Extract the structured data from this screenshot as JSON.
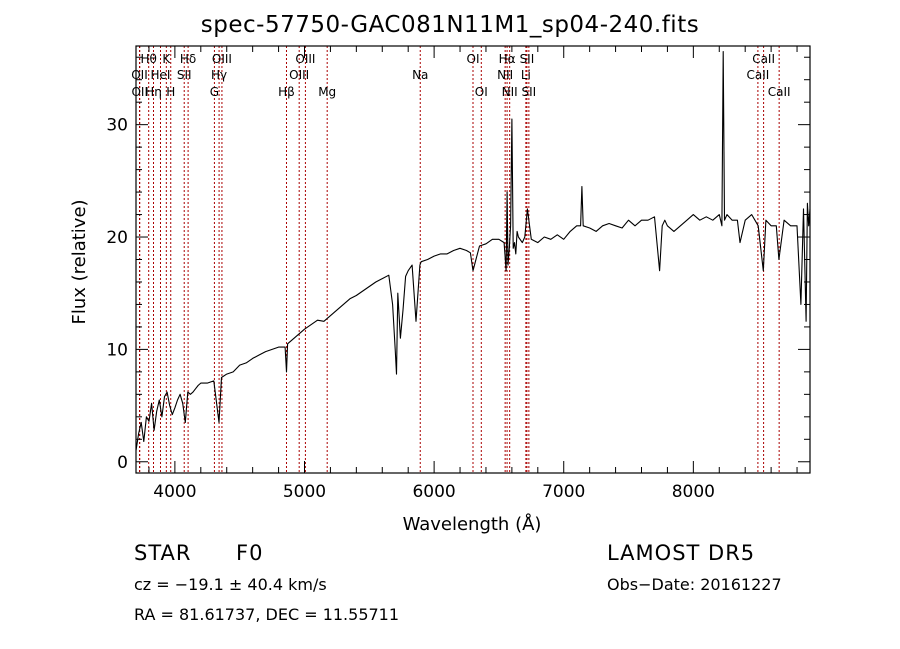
{
  "chart_data": {
    "type": "line",
    "title": "spec-57750-GAC081N11M1_sp04-240.fits",
    "xlabel": "Wavelength (Å)",
    "ylabel": "Flux (relative)",
    "xlim": [
      3700,
      8900
    ],
    "ylim": [
      -1,
      37
    ],
    "xticks": [
      4000,
      5000,
      6000,
      7000,
      8000
    ],
    "yticks": [
      0,
      10,
      20,
      30
    ],
    "grid": false,
    "line_color": "#000000",
    "marker_color": "#aa0000",
    "series": [
      {
        "x": [
          3700,
          3720,
          3740,
          3760,
          3780,
          3800,
          3820,
          3840,
          3860,
          3880,
          3900,
          3920,
          3940,
          3960,
          3980,
          4000,
          4020,
          4040,
          4060,
          4080,
          4100,
          4120,
          4140,
          4160,
          4180,
          4200,
          4250,
          4300,
          4340,
          4360,
          4400,
          4450,
          4500,
          4550,
          4600,
          4650,
          4700,
          4750,
          4800,
          4850,
          4861,
          4870,
          4900,
          4950,
          5000,
          5050,
          5100,
          5150,
          5200,
          5250,
          5300,
          5350,
          5400,
          5450,
          5500,
          5550,
          5600,
          5650,
          5680,
          5700,
          5710,
          5720,
          5740,
          5760,
          5780,
          5800,
          5830,
          5860,
          5890,
          5900,
          5950,
          6000,
          6050,
          6100,
          6150,
          6200,
          6250,
          6280,
          6300,
          6350,
          6400,
          6450,
          6500,
          6540,
          6555,
          6563,
          6570,
          6580,
          6590,
          6600,
          6610,
          6620,
          6630,
          6640,
          6650,
          6680,
          6700,
          6720,
          6750,
          6800,
          6850,
          6900,
          6950,
          7000,
          7050,
          7100,
          7130,
          7140,
          7150,
          7200,
          7250,
          7300,
          7350,
          7400,
          7450,
          7500,
          7550,
          7600,
          7650,
          7700,
          7740,
          7760,
          7780,
          7800,
          7850,
          7900,
          7950,
          8000,
          8050,
          8100,
          8150,
          8200,
          8220,
          8230,
          8240,
          8260,
          8300,
          8340,
          8360,
          8400,
          8450,
          8500,
          8540,
          8560,
          8600,
          8640,
          8660,
          8700,
          8750,
          8800,
          8830,
          8850,
          8870,
          8880,
          8890,
          8900
        ],
        "y": [
          1.0,
          2.5,
          3.5,
          1.8,
          4.0,
          3.6,
          5.2,
          2.8,
          4.5,
          5.5,
          4.0,
          5.8,
          6.2,
          5.0,
          4.2,
          4.8,
          5.5,
          6.0,
          5.2,
          3.5,
          6.2,
          6.0,
          6.2,
          6.5,
          6.8,
          7.0,
          7.0,
          7.2,
          3.5,
          7.5,
          7.8,
          8.0,
          8.6,
          8.8,
          9.2,
          9.5,
          9.8,
          10.0,
          10.2,
          10.2,
          8.0,
          10.5,
          10.8,
          11.3,
          11.8,
          12.2,
          12.6,
          12.5,
          13.0,
          13.5,
          14.0,
          14.5,
          14.8,
          15.2,
          15.6,
          16.0,
          16.3,
          16.6,
          14.0,
          10.0,
          7.8,
          15.0,
          11.0,
          13.5,
          16.5,
          17.0,
          17.5,
          12.5,
          17.5,
          17.8,
          18.0,
          18.3,
          18.5,
          18.5,
          18.8,
          19.0,
          18.8,
          18.6,
          17.0,
          19.2,
          19.4,
          19.8,
          19.8,
          19.5,
          17.0,
          24.0,
          17.5,
          19.0,
          21.0,
          30.5,
          19.0,
          19.5,
          18.5,
          20.5,
          20.0,
          19.5,
          20.0,
          22.5,
          19.8,
          19.5,
          20.0,
          19.8,
          20.2,
          19.8,
          20.5,
          21.0,
          21.0,
          24.5,
          21.0,
          20.8,
          20.5,
          21.0,
          21.2,
          21.0,
          20.8,
          21.5,
          21.0,
          21.5,
          21.5,
          21.8,
          17.0,
          21.0,
          21.5,
          21.0,
          20.5,
          21.0,
          21.5,
          22.0,
          21.5,
          21.8,
          21.5,
          22.0,
          21.0,
          36.5,
          21.5,
          22.0,
          21.5,
          21.5,
          19.5,
          21.5,
          22.0,
          21.0,
          17.0,
          21.5,
          21.0,
          21.0,
          18.0,
          21.5,
          21.0,
          21.0,
          14.0,
          22.5,
          12.5,
          23.0,
          21.0,
          22.5
        ]
      }
    ],
    "line_markers": [
      {
        "label": "Hθ",
        "x": 3798,
        "row": 1
      },
      {
        "label": "OII",
        "x": 3727,
        "row": 2
      },
      {
        "label": "OII",
        "x": 3729,
        "row": 3
      },
      {
        "label": "HeI",
        "x": 3889,
        "row": 2
      },
      {
        "label": "K",
        "x": 3934,
        "row": 1
      },
      {
        "label": "Hη",
        "x": 3835,
        "row": 3
      },
      {
        "label": "H",
        "x": 3968,
        "row": 3
      },
      {
        "label": "Hδ",
        "x": 4102,
        "row": 1
      },
      {
        "label": "SII",
        "x": 4072,
        "row": 2
      },
      {
        "label": "OIII",
        "x": 4363,
        "row": 1
      },
      {
        "label": "Hγ",
        "x": 4341,
        "row": 2
      },
      {
        "label": "G",
        "x": 4305,
        "row": 3
      },
      {
        "label": "OIII",
        "x": 5007,
        "row": 1
      },
      {
        "label": "OIII",
        "x": 4959,
        "row": 2
      },
      {
        "label": "Hβ",
        "x": 4861,
        "row": 3
      },
      {
        "label": "Mg",
        "x": 5175,
        "row": 3
      },
      {
        "label": "Na",
        "x": 5893,
        "row": 2
      },
      {
        "label": "OI",
        "x": 6300,
        "row": 1
      },
      {
        "label": "OI",
        "x": 6364,
        "row": 3
      },
      {
        "label": "Hα",
        "x": 6563,
        "row": 1
      },
      {
        "label": "NII",
        "x": 6548,
        "row": 2
      },
      {
        "label": "NII",
        "x": 6583,
        "row": 3
      },
      {
        "label": "SII",
        "x": 6716,
        "row": 1
      },
      {
        "label": "Li",
        "x": 6708,
        "row": 2
      },
      {
        "label": "SII",
        "x": 6731,
        "row": 3
      },
      {
        "label": "CaII",
        "x": 8542,
        "row": 1
      },
      {
        "label": "CaII",
        "x": 8498,
        "row": 2
      },
      {
        "label": "CaII",
        "x": 8662,
        "row": 3
      }
    ]
  },
  "footer": {
    "object_type": "STAR",
    "subclass": "F0",
    "survey": "LAMOST DR5",
    "redshift_text": "cz = −19.1 ± 40.4 km/s",
    "obs_date": "Obs−Date: 20161227",
    "coords": "RA =  81.61737, DEC =  11.55711"
  }
}
